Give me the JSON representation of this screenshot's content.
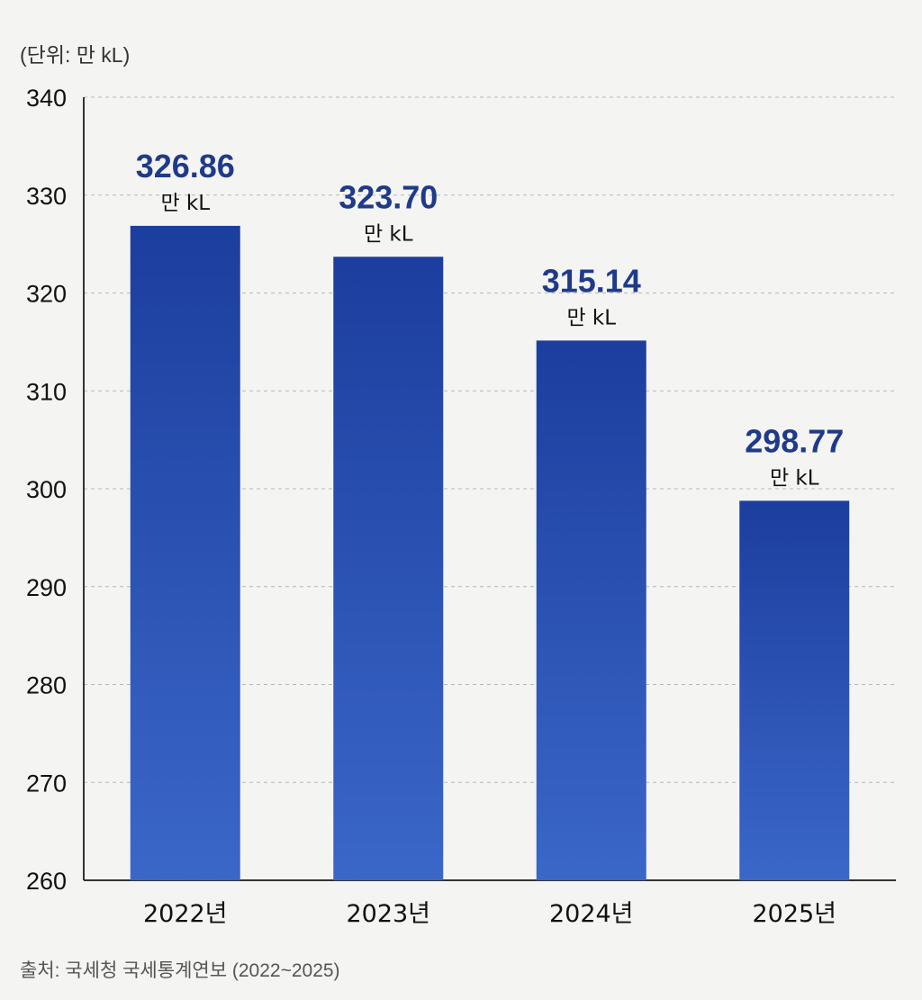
{
  "unit_label": "(단위: 만 kL)",
  "source_label": "출처: 국세청 국세통계연보 (2022~2025)",
  "colors": {
    "bar_top": "#1c3e9e",
    "bar_bottom": "#3a67c9",
    "value_label": "#1f3a8a",
    "grid": "#b8b8b8",
    "axis": "#333333"
  },
  "chart_data": {
    "type": "bar",
    "title": "",
    "xlabel": "",
    "ylabel": "(단위: 만 kL)",
    "categories": [
      "2022년",
      "2023년",
      "2024년",
      "2025년"
    ],
    "values": [
      326.86,
      323.7,
      315.14,
      298.77
    ],
    "value_labels": [
      "326.86",
      "323.70",
      "315.14",
      "298.77"
    ],
    "value_unit": "만 kL",
    "ylim": [
      260,
      340
    ],
    "yticks": [
      260,
      270,
      280,
      290,
      300,
      310,
      320,
      330,
      340
    ],
    "grid": true,
    "legend": "none"
  }
}
